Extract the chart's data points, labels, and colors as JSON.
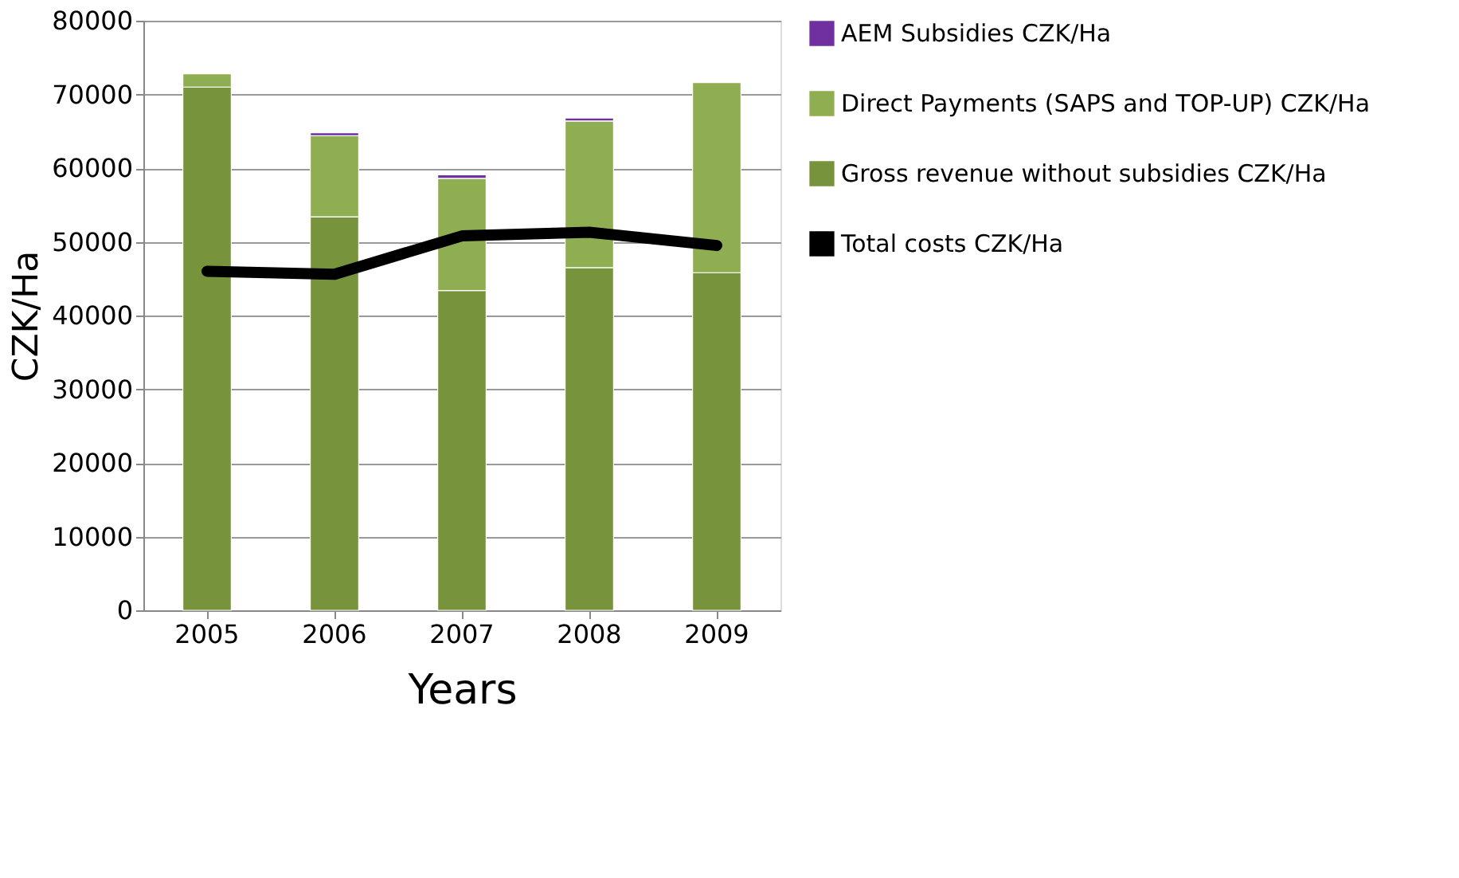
{
  "chart_data": {
    "type": "bar",
    "stacked": true,
    "xlabel": "Years",
    "ylabel": "CZK/Ha",
    "categories": [
      "2005",
      "2006",
      "2007",
      "2008",
      "2009"
    ],
    "series": [
      {
        "name": "Gross revenue without subsidies CZK/Ha",
        "color": "#77933c",
        "values": [
          71000,
          53400,
          43400,
          46500,
          45800
        ]
      },
      {
        "name": "Direct Payments (SAPS and TOP-UP) CZK/Ha",
        "color": "#8fae52",
        "values": [
          1800,
          11000,
          15200,
          19900,
          25800
        ]
      },
      {
        "name": "AEM Subsidies CZK/Ha",
        "color": "#7030a0",
        "values": [
          null,
          400,
          500,
          400,
          null
        ]
      },
      {
        "name": "Total costs CZK/Ha",
        "type": "line",
        "color": "#000000",
        "values": [
          46000,
          45600,
          50800,
          51300,
          49500
        ]
      }
    ],
    "ylim": [
      0,
      80000
    ],
    "yticks": [
      0,
      10000,
      20000,
      30000,
      40000,
      50000,
      60000,
      70000,
      80000
    ],
    "grid": "y",
    "legend": "right"
  }
}
